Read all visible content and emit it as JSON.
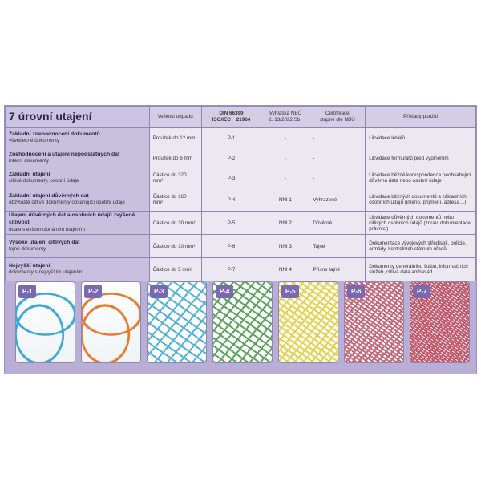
{
  "title": "7 úrovní utajení",
  "headers": {
    "size": "Velikost odpadu",
    "din_1": "DIN 66399",
    "din_2": "ISO/IEC",
    "din_3": "21964",
    "nbu_1": "Vyhláška NBÚ",
    "nbu_2": "č. 13/2022 Sb.",
    "cert_1": "Certifikace",
    "cert_2": "stupně dle NBÚ",
    "examples": "Příklady použití"
  },
  "rows": [
    {
      "level": "Základní znehodnocení dokumentů",
      "desc": "všeobecné dokumenty",
      "size": "Proužek do 12 mm",
      "din": "P-1",
      "nbu": "-",
      "cert": "-",
      "example": "Likvidace letáků"
    },
    {
      "level": "Znehodnocení a utajení nepodstatných dat",
      "desc": "interní dokumenty",
      "size": "Proužek do 6 mm",
      "din": "P-2",
      "nbu": "-",
      "cert": "-",
      "example": "Likvidace formulářů před vyplněním"
    },
    {
      "level": "Základní utajení",
      "desc": "citlivé dokumenty, osobní údaje",
      "size": "Částice do 320 mm²",
      "din": "P-3",
      "nbu": "-",
      "cert": "-",
      "example": "Likvidace běžné korespondence neobsahující důvěrná data nebo osobní údaje"
    },
    {
      "level": "Základní utajení důvěrných dat",
      "desc": "obzvláště citlivé dokumenty obsahující osobní údaje",
      "size": "Částice do 160 mm²",
      "din": "P-4",
      "nbu": "NNI 1",
      "cert": "Vyhrazené",
      "example": "Likvidace běžných dokumentů a základních osobních údajů (jméno, příjmení, adresa…)"
    },
    {
      "level": "Utajení důvěrných dat a osobních údajů zvýšené citlivosti",
      "desc": "údaje s existencionálním utajením",
      "size": "Částice do 30 mm²",
      "din": "P-5",
      "nbu": "NNI 2",
      "cert": "Důvěrné",
      "example": "Likvidace důvěrných dokumentů nebo citlivých osobních údajů (zdrav. dokumentace, právníci)"
    },
    {
      "level": "Vysoké utajení citlivých dat",
      "desc": "tajné dokumenty",
      "size": "Částice do 10 mm²",
      "din": "P-6",
      "nbu": "NNI 3",
      "cert": "Tajné",
      "example": "Dokumentace vývojových středisek, policie, armády, kontrolních státních úřadů."
    },
    {
      "level": "Nejvyšší utajení",
      "desc": "dokumenty s nejvyšším utajením",
      "size": "Částice do 5 mm²",
      "din": "P-7",
      "nbu": "NNI 4",
      "cert": "Přísne tajné",
      "example": "Dokumenty generálního štábu, informačních služeb, citlivá data ambasád."
    }
  ],
  "photos": [
    {
      "label": "P-1",
      "color": "#3aa8d4"
    },
    {
      "label": "P-2",
      "color": "#e8782a"
    },
    {
      "label": "P-3",
      "color": "#4fb3da"
    },
    {
      "label": "P-4",
      "color": "#5aa55a"
    },
    {
      "label": "P-5",
      "color": "#e6d24a"
    },
    {
      "label": "P-6",
      "color": "#c46a7a"
    },
    {
      "label": "P-7",
      "color": "#c45a6e"
    }
  ]
}
